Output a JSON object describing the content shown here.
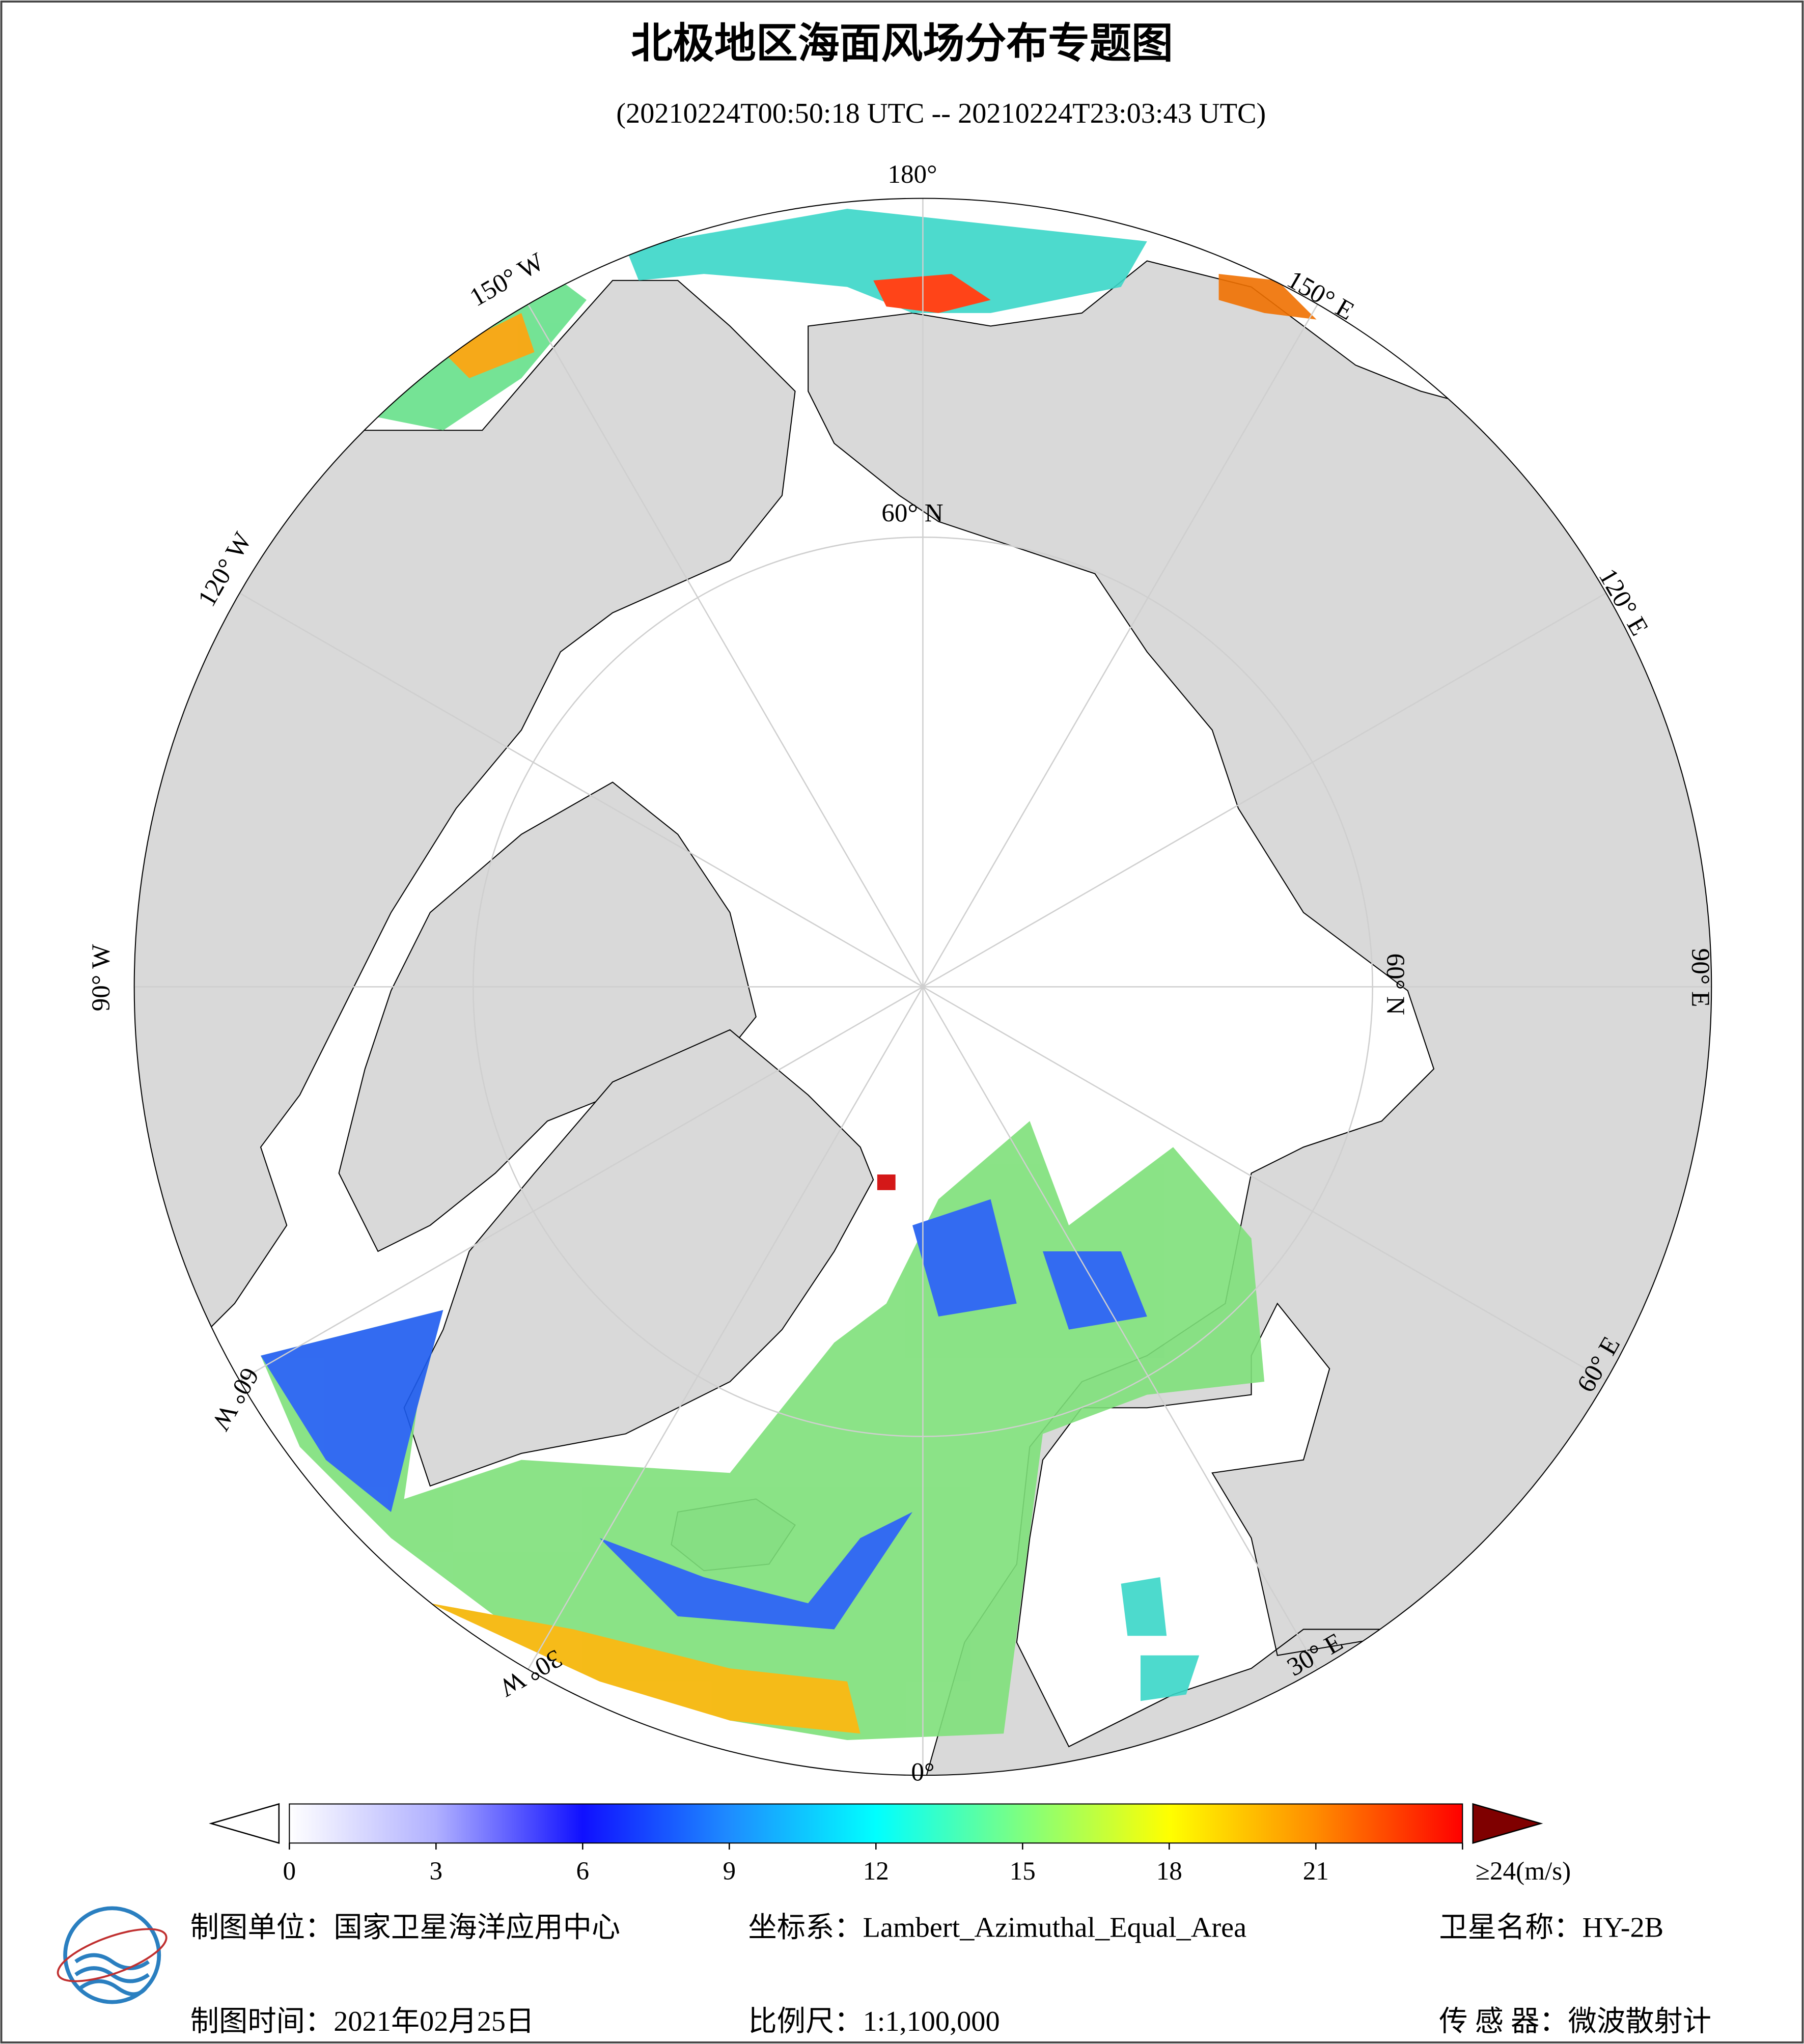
{
  "header": {
    "title": "北极地区海面风场分布专题图",
    "subtitle": "(20210224T00:50:18 UTC -- 20210224T23:03:43 UTC)"
  },
  "map": {
    "labels": [
      "180°",
      "150° E",
      "120° E",
      "90° E",
      "60° E",
      "30° E",
      "0°",
      "30° W",
      "60° W",
      "90° W",
      "120° W",
      "150° W",
      "60° N",
      "60° N"
    ]
  },
  "colorbar": {
    "range": [
      0,
      24
    ],
    "ticks": [
      0,
      3,
      6,
      9,
      12,
      15,
      18,
      21,
      {
        "value": 24,
        "label": "≥24(m/s)"
      }
    ],
    "colors": [
      "#ffffff",
      "#b0b0ff",
      "#1010ff",
      "#1e8cff",
      "#00ffff",
      "#7fff7f",
      "#ffff00",
      "#ff8c00",
      "#ff0000",
      "#7f0000"
    ]
  },
  "footer": {
    "items": [
      "制图单位：国家卫星海洋应用中心",
      "坐标系：Lambert_Azimuthal_Equal_Area",
      "卫星名称：HY-2B",
      "制图时间：2021年02月25日",
      "比例尺：1:1,100,000",
      "传 感 器：微波散射计"
    ]
  }
}
